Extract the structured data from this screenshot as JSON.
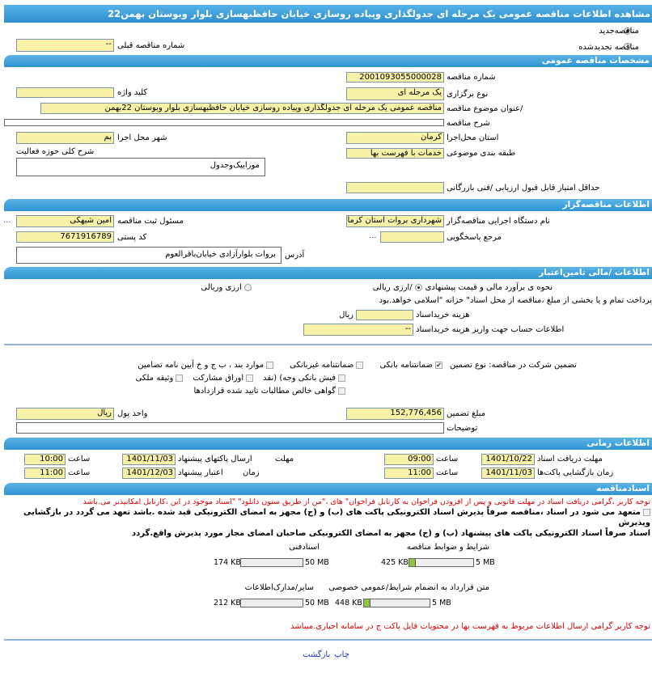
{
  "title": "مشاهده اطلاعات مناقصه  عمومی یک مرحله ای جدولگذاری وپیاده روسازی خیابان حافظبهسازی بلوار وبوستان بهمن22",
  "tender_type": {
    "new_label": "مناقصه‌جدید",
    "renewed_label": "مناقصه تجدیدشده",
    "selected": "new",
    "prev_number_label": "شماره  مناقصه قبلی",
    "prev_number": "--"
  },
  "general": {
    "header": "مشخصات مناقصه عمومی",
    "number_label": "شماره مناقصه",
    "number": "2001093055000028",
    "hold_type_label": "نوع برگزاری",
    "hold_type": "یک مرحله ای",
    "keyword_label": "کلید واژه",
    "keyword": "",
    "subject_label": "/عنوان  موضوع مناقصه",
    "subject": "مناقصه عمومی یک مرحله ای جدولگذاری وپیاده روسازی خیابان حافظبهسازی بلوار وبوستان 22بهمن",
    "description_label": "شرح مناقصه",
    "description": "",
    "province_label": "استان محل‌اجرا",
    "province": "کرمان",
    "city_label": "شهر محل اجرا",
    "city": "بم",
    "category_label": "طبقه بندی موضوعی",
    "category": "خدمات با فهرست بها",
    "activity_label": "شرح  کلی حوزه فعالیت",
    "activity": "موزاییک‌وجدول",
    "min_score_label": "حداقل  امتیاز قابل  قبول  ارزیابی /فنی بازرگانی",
    "min_score": ""
  },
  "organizer": {
    "header": "اطلاعات مناقصه‌گزار",
    "org_label": "نام  دستگاه  اجرایی  مناقصه‌گزار",
    "org": "شهرداری بروات استان کرمان",
    "registrar_label": "مسئول  ثبت  مناقصه",
    "registrar": "امین شیهکی",
    "more": "...",
    "reference_label": "مرجع پاسخگویی",
    "reference": "",
    "postal_label": "کد  پستی",
    "postal": "7671916789",
    "address_label": "آدرس",
    "address": "بروات  بلوارآزادی  خیابان‌باقرالعوم"
  },
  "finance": {
    "header": "اطلاعات /مالی تامین‌اعتبار",
    "estimate_label": "نحوه ی برآورد مالی و قیمت پیشنهادی",
    "rial_label": "/ارزی ریالی",
    "fx_label": "ارزی وریالی",
    "selected": "rial",
    "payment_note": "پرداخت تمام و یا  بخشی  از مبلغ  ،مناقصه از محل اسناد\" خزانه \"اسلامی خواهد.بود",
    "doc_fee_label": "هزینه خریداسناد",
    "doc_fee": "",
    "doc_fee_unit": "ریال",
    "account_label": "اطلاعات حساب جهت واریز  هزینه خریداسناد",
    "account": "--",
    "guarantee_label": "تضمین شرکت در  مناقصه:   نوع    تضمین",
    "guarantee_options": [
      {
        "label": "ضمانتنامه  بانکی",
        "checked": true
      },
      {
        "label": "ضمانتنامه  غیربانکی",
        "checked": false
      },
      {
        "label": "موارد  بند ، ب ج و خ آیین نامه تضامین",
        "checked": false
      },
      {
        "label": "فیش  بانکی وجه) (نقد",
        "checked": false
      },
      {
        "label": "اوراق  مشارکت",
        "checked": false
      },
      {
        "label": "وثیقه ملکی",
        "checked": false
      },
      {
        "label": "گواهی  خالص مطالبات تایید شده قراردادها",
        "checked": false
      }
    ],
    "amount_label": "مبلغ  تضمین",
    "amount": "152,776,456",
    "currency_label": "واحد پول",
    "currency": "ریال",
    "notes_label": "توضیحات",
    "notes": ""
  },
  "timing": {
    "header": "اطلاعات زمانی",
    "time_label": "ساعت",
    "doc_deadline_label": "مهلت  دریافت اسناد",
    "doc_deadline": "1401/10/22",
    "doc_deadline_time": "09:00",
    "submit_label_1": "مهلت",
    "submit_label_2": "ارسال   پاکتهای پیشنهاد",
    "submit_deadline": "1401/11/03",
    "submit_time": "10:00",
    "opening_label": "زمان  بازگشایی پاکت‌ها",
    "opening": "1401/11/03",
    "opening_time": "11:00",
    "validity_label_1": "زمان",
    "validity_label_2": "اعتبار پیشنهاد",
    "validity": "1401/12/03",
    "validity_time": "11:00"
  },
  "documents": {
    "header": "اسنادمناقصه",
    "notice": "توجه کاربر ،گرامی دریافت اسناد در مهلت قانونی و پس از افزودن فراخوان به کارتابل فراخوان\" های ،\"من از طریق  ستون دانلود\" \"اسناد موجود در این ،کارتابل امکانپذیر می.باشد",
    "commit_line1": "متعهد می شود در اسناد ،مناقصه صرفاً پذیرش اسناد الکترونیکی پاکت های (ب) و (ج) مجهز به امضای الکترونیکی قید شده .باشد تعهد می گردد در بازگشایی وپذیرش",
    "commit_line2": "اسناد صرفاً اسناد الکترونیکی پاکت های پیشنهاد (ب) و (ج) مجهز به امضای الکترونیکی صاحبان امضای مجاز مورد پذیرش واقع.گردد",
    "files": [
      {
        "label": "شرایط و  ضوابط مناقصه",
        "size": "425 KB",
        "max": "5 MB",
        "percent": 8.3
      },
      {
        "label": "اسنادفنی",
        "size": "174 KB",
        "max": "50 MB",
        "percent": 0.35
      },
      {
        "label": "متن قرارداد به  انضمام شرایط/عمومی خصوصی",
        "size": "448 KB",
        "max": "5 MB",
        "percent": 8.75
      },
      {
        "label": "سایر/مدارک‌اطلاعات",
        "size": "212 KB",
        "max": "50 MB",
        "percent": 0.42
      }
    ],
    "price_notice": "توجه کاربر گرامی ارسال اطلاعات مربوط به فهرست بها در محتویات فایل پاکت ج در سامانه  اجباری.میباشد"
  },
  "footer": {
    "print_label": "چاپ",
    "back_label": "بازگشت"
  }
}
